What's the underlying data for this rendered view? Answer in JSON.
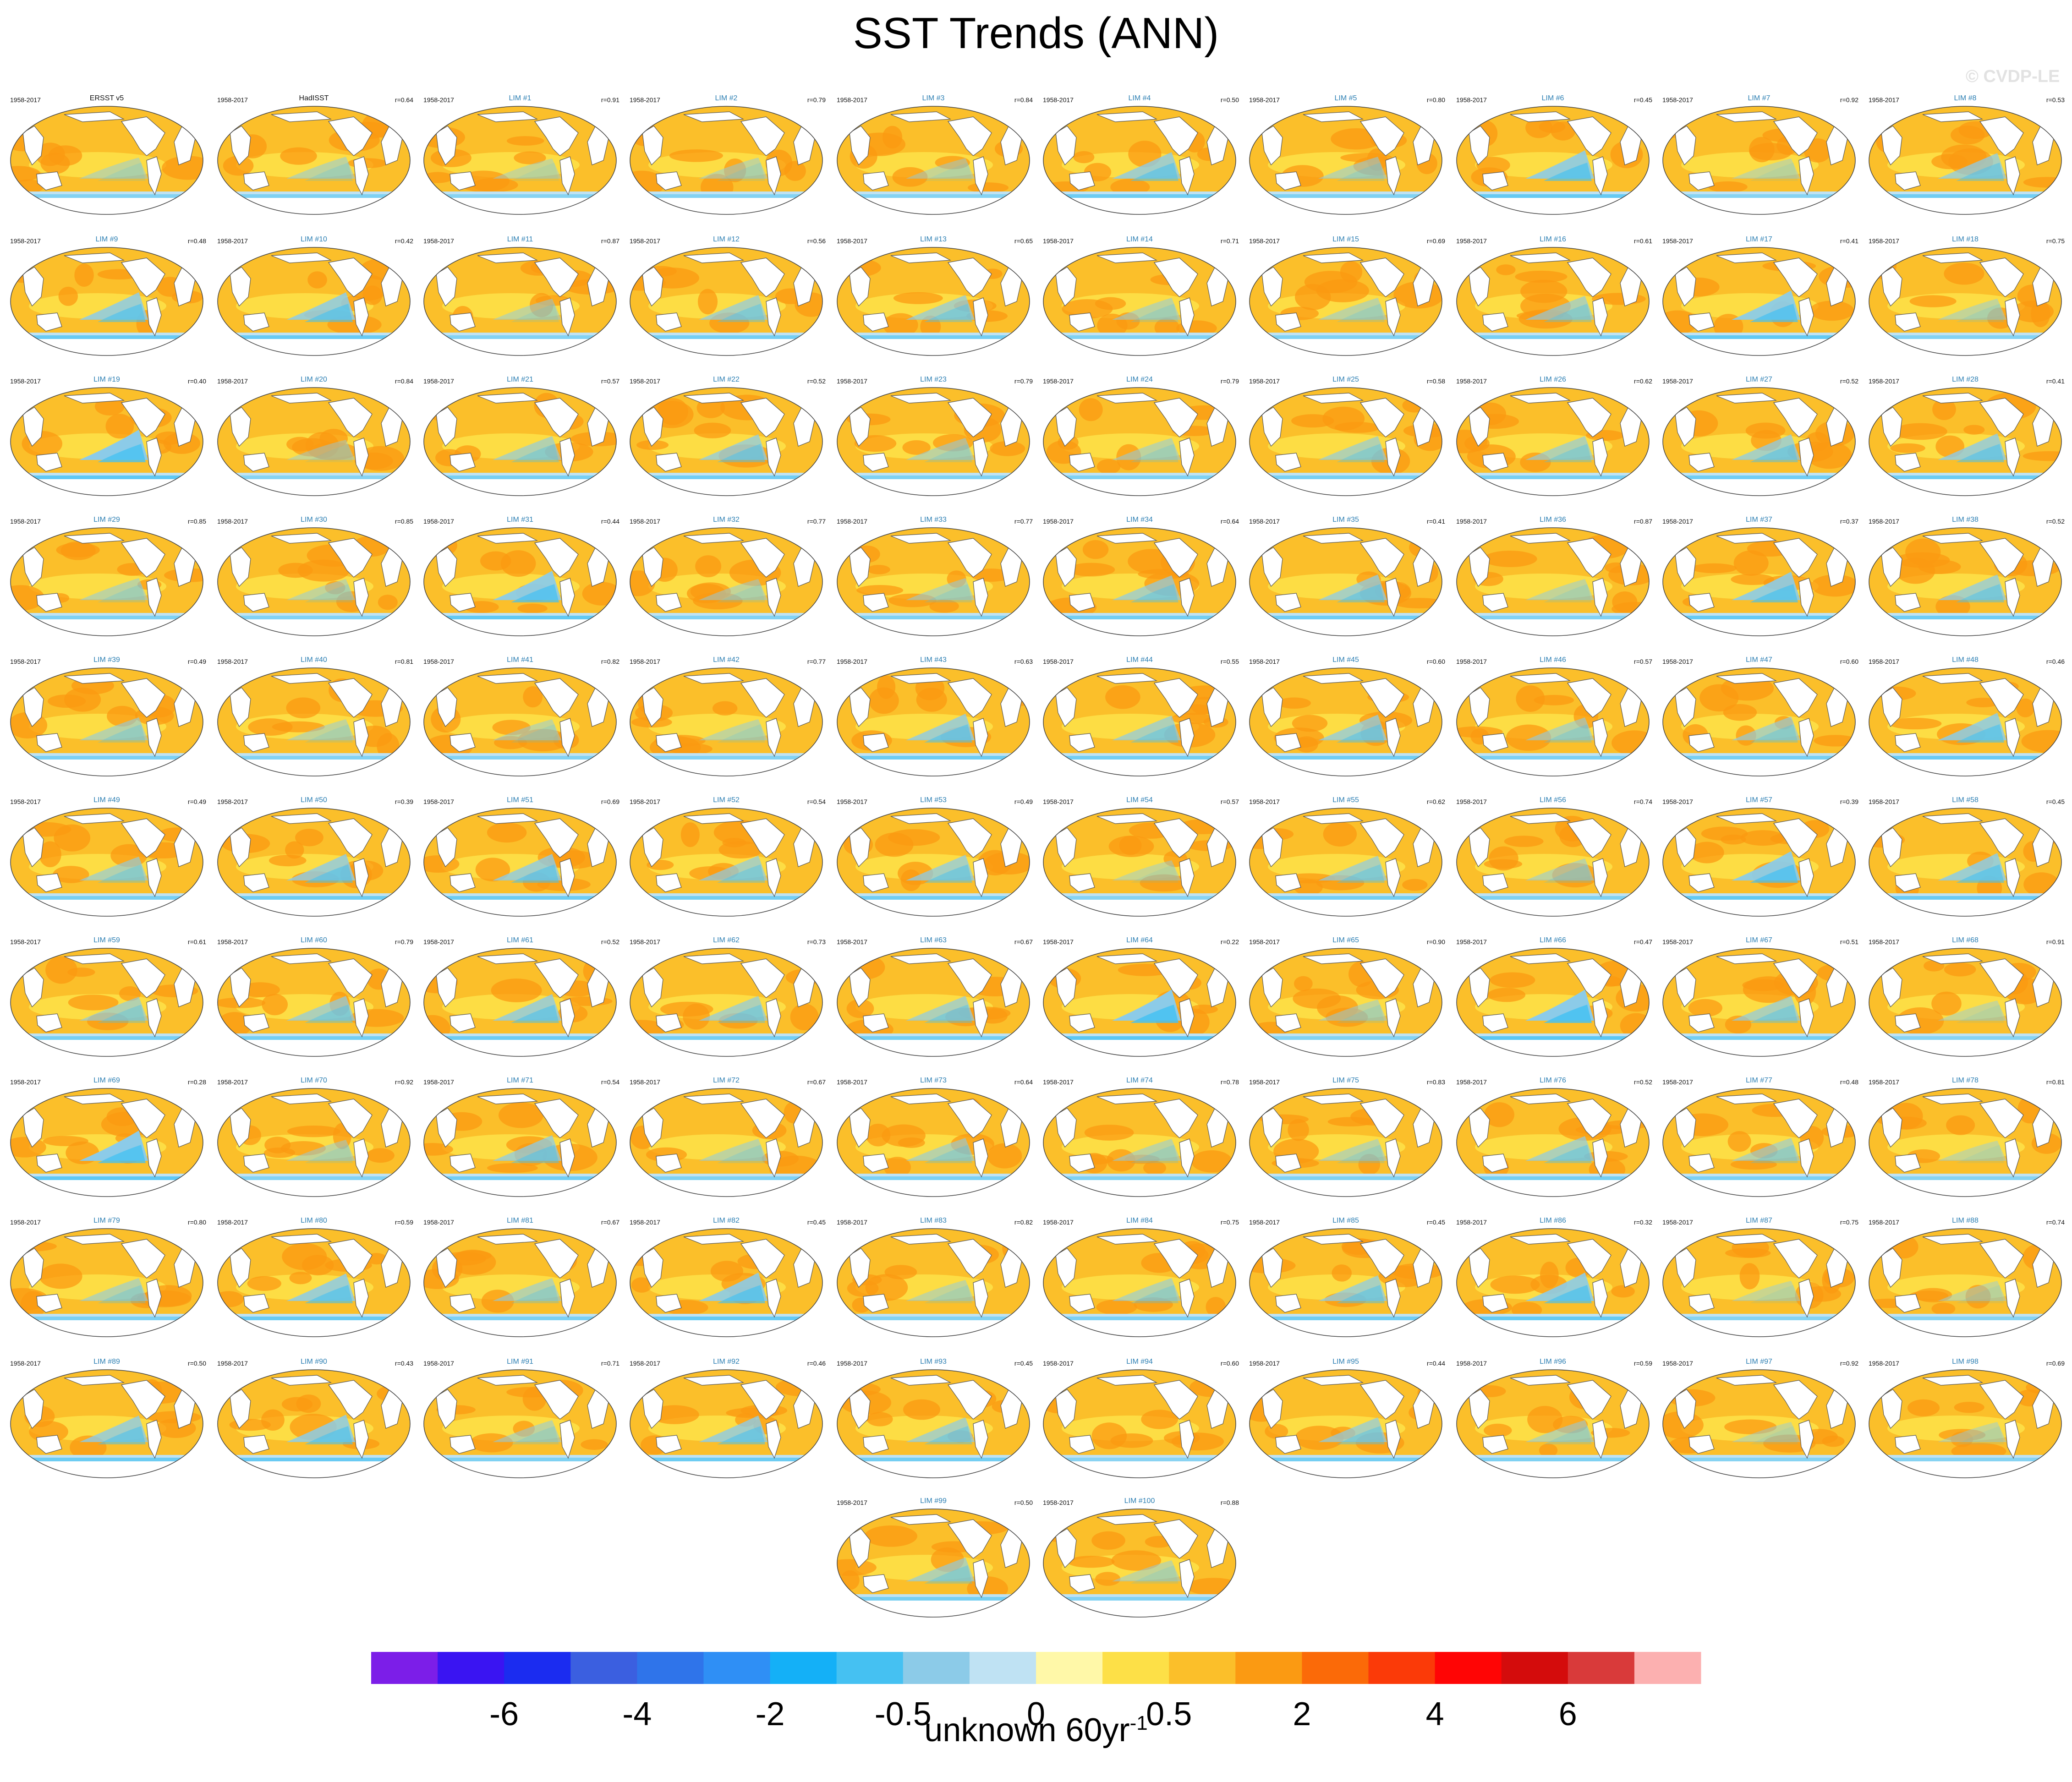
{
  "title": "SST Trends (ANN)",
  "watermark": "© CVDP-LE",
  "period": "1958-2017",
  "panels": [
    {
      "name": "ERSST v5",
      "r": "",
      "obs": true,
      "cool": 0.15
    },
    {
      "name": "HadISST",
      "r": "r=0.64",
      "obs": true,
      "cool": 0.2
    },
    {
      "name": "LIM #1",
      "r": "r=0.91",
      "cool": 0.1
    },
    {
      "name": "LIM #2",
      "r": "r=0.79",
      "cool": 0.15
    },
    {
      "name": "LIM #3",
      "r": "r=0.84",
      "cool": 0.12
    },
    {
      "name": "LIM #4",
      "r": "r=0.50",
      "cool": 0.45
    },
    {
      "name": "LIM #5",
      "r": "r=0.80",
      "cool": 0.2
    },
    {
      "name": "LIM #6",
      "r": "r=0.45",
      "cool": 0.55
    },
    {
      "name": "LIM #7",
      "r": "r=0.92",
      "cool": 0.1
    },
    {
      "name": "LIM #8",
      "r": "r=0.53",
      "cool": 0.4
    },
    {
      "name": "LIM #9",
      "r": "r=0.48",
      "cool": 0.5
    },
    {
      "name": "LIM #10",
      "r": "r=0.42",
      "cool": 0.5
    },
    {
      "name": "LIM #11",
      "r": "r=0.87",
      "cool": 0.15
    },
    {
      "name": "LIM #12",
      "r": "r=0.56",
      "cool": 0.35
    },
    {
      "name": "LIM #13",
      "r": "r=0.65",
      "cool": 0.35
    },
    {
      "name": "LIM #14",
      "r": "r=0.71",
      "cool": 0.2
    },
    {
      "name": "LIM #15",
      "r": "r=0.69",
      "cool": 0.2
    },
    {
      "name": "LIM #16",
      "r": "r=0.61",
      "cool": 0.3
    },
    {
      "name": "LIM #17",
      "r": "r=0.41",
      "cool": 0.6
    },
    {
      "name": "LIM #18",
      "r": "r=0.75",
      "cool": 0.15
    },
    {
      "name": "LIM #19",
      "r": "r=0.40",
      "cool": 0.65
    },
    {
      "name": "LIM #20",
      "r": "r=0.84",
      "cool": 0.1
    },
    {
      "name": "LIM #21",
      "r": "r=0.57",
      "cool": 0.3
    },
    {
      "name": "LIM #22",
      "r": "r=0.52",
      "cool": 0.4
    },
    {
      "name": "LIM #23",
      "r": "r=0.79",
      "cool": 0.2
    },
    {
      "name": "LIM #24",
      "r": "r=0.79",
      "cool": 0.2
    },
    {
      "name": "LIM #25",
      "r": "r=0.58",
      "cool": 0.3
    },
    {
      "name": "LIM #26",
      "r": "r=0.62",
      "cool": 0.3
    },
    {
      "name": "LIM #27",
      "r": "r=0.52",
      "cool": 0.4
    },
    {
      "name": "LIM #28",
      "r": "r=0.41",
      "cool": 0.45
    },
    {
      "name": "LIM #29",
      "r": "r=0.85",
      "cool": 0.2
    },
    {
      "name": "LIM #30",
      "r": "r=0.85",
      "cool": 0.15
    },
    {
      "name": "LIM #31",
      "r": "r=0.44",
      "cool": 0.6
    },
    {
      "name": "LIM #32",
      "r": "r=0.77",
      "cool": 0.15
    },
    {
      "name": "LIM #33",
      "r": "r=0.77",
      "cool": 0.2
    },
    {
      "name": "LIM #34",
      "r": "r=0.64",
      "cool": 0.35
    },
    {
      "name": "LIM #35",
      "r": "r=0.41",
      "cool": 0.4
    },
    {
      "name": "LIM #36",
      "r": "r=0.87",
      "cool": 0.15
    },
    {
      "name": "LIM #37",
      "r": "r=0.37",
      "cool": 0.55
    },
    {
      "name": "LIM #38",
      "r": "r=0.52",
      "cool": 0.4
    },
    {
      "name": "LIM #39",
      "r": "r=0.49",
      "cool": 0.25
    },
    {
      "name": "LIM #40",
      "r": "r=0.81",
      "cool": 0.15
    },
    {
      "name": "LIM #41",
      "r": "r=0.82",
      "cool": 0.15
    },
    {
      "name": "LIM #42",
      "r": "r=0.77",
      "cool": 0.15
    },
    {
      "name": "LIM #43",
      "r": "r=0.63",
      "cool": 0.45
    },
    {
      "name": "LIM #44",
      "r": "r=0.55",
      "cool": 0.35
    },
    {
      "name": "LIM #45",
      "r": "r=0.60",
      "cool": 0.4
    },
    {
      "name": "LIM #46",
      "r": "r=0.57",
      "cool": 0.25
    },
    {
      "name": "LIM #47",
      "r": "r=0.60",
      "cool": 0.3
    },
    {
      "name": "LIM #48",
      "r": "r=0.46",
      "cool": 0.5
    },
    {
      "name": "LIM #49",
      "r": "r=0.49",
      "cool": 0.3
    },
    {
      "name": "LIM #50",
      "r": "r=0.39",
      "cool": 0.45
    },
    {
      "name": "LIM #51",
      "r": "r=0.69",
      "cool": 0.45
    },
    {
      "name": "LIM #52",
      "r": "r=0.54",
      "cool": 0.35
    },
    {
      "name": "LIM #53",
      "r": "r=0.49",
      "cool": 0.4
    },
    {
      "name": "LIM #54",
      "r": "r=0.57",
      "cool": 0.1
    },
    {
      "name": "LIM #55",
      "r": "r=0.62",
      "cool": 0.35
    },
    {
      "name": "LIM #56",
      "r": "r=0.74",
      "cool": 0.2
    },
    {
      "name": "LIM #57",
      "r": "r=0.39",
      "cool": 0.6
    },
    {
      "name": "LIM #58",
      "r": "r=0.45",
      "cool": 0.5
    },
    {
      "name": "LIM #59",
      "r": "r=0.61",
      "cool": 0.3
    },
    {
      "name": "LIM #60",
      "r": "r=0.79",
      "cool": 0.35
    },
    {
      "name": "LIM #61",
      "r": "r=0.52",
      "cool": 0.45
    },
    {
      "name": "LIM #62",
      "r": "r=0.73",
      "cool": 0.35
    },
    {
      "name": "LIM #63",
      "r": "r=0.67",
      "cool": 0.35
    },
    {
      "name": "LIM #64",
      "r": "r=0.22",
      "cool": 0.7
    },
    {
      "name": "LIM #65",
      "r": "r=0.90",
      "cool": 0.15
    },
    {
      "name": "LIM #66",
      "r": "r=0.47",
      "cool": 0.7
    },
    {
      "name": "LIM #67",
      "r": "r=0.51",
      "cool": 0.35
    },
    {
      "name": "LIM #68",
      "r": "r=0.91",
      "cool": 0.1
    },
    {
      "name": "LIM #69",
      "r": "r=0.28",
      "cool": 0.65
    },
    {
      "name": "LIM #70",
      "r": "r=0.92",
      "cool": 0.15
    },
    {
      "name": "LIM #71",
      "r": "r=0.54",
      "cool": 0.4
    },
    {
      "name": "LIM #72",
      "r": "r=0.67",
      "cool": 0.2
    },
    {
      "name": "LIM #73",
      "r": "r=0.64",
      "cool": 0.25
    },
    {
      "name": "LIM #74",
      "r": "r=0.78",
      "cool": 0.2
    },
    {
      "name": "LIM #75",
      "r": "r=0.83",
      "cool": 0.2
    },
    {
      "name": "LIM #76",
      "r": "r=0.52",
      "cool": 0.35
    },
    {
      "name": "LIM #77",
      "r": "r=0.48",
      "cool": 0.25
    },
    {
      "name": "LIM #78",
      "r": "r=0.81",
      "cool": 0.1
    },
    {
      "name": "LIM #79",
      "r": "r=0.80",
      "cool": 0.25
    },
    {
      "name": "LIM #80",
      "r": "r=0.59",
      "cool": 0.5
    },
    {
      "name": "LIM #81",
      "r": "r=0.67",
      "cool": 0.25
    },
    {
      "name": "LIM #82",
      "r": "r=0.45",
      "cool": 0.55
    },
    {
      "name": "LIM #83",
      "r": "r=0.82",
      "cool": 0.15
    },
    {
      "name": "LIM #84",
      "r": "r=0.75",
      "cool": 0.25
    },
    {
      "name": "LIM #85",
      "r": "r=0.45",
      "cool": 0.4
    },
    {
      "name": "LIM #86",
      "r": "r=0.32",
      "cool": 0.55
    },
    {
      "name": "LIM #87",
      "r": "r=0.75",
      "cool": 0.1
    },
    {
      "name": "LIM #88",
      "r": "r=0.74",
      "cool": 0.1
    },
    {
      "name": "LIM #89",
      "r": "r=0.50",
      "cool": 0.45
    },
    {
      "name": "LIM #90",
      "r": "r=0.43",
      "cool": 0.5
    },
    {
      "name": "LIM #91",
      "r": "r=0.71",
      "cool": 0.2
    },
    {
      "name": "LIM #92",
      "r": "r=0.46",
      "cool": 0.45
    },
    {
      "name": "LIM #93",
      "r": "r=0.45",
      "cool": 0.35
    },
    {
      "name": "LIM #94",
      "r": "r=0.60",
      "cool": 0.05
    },
    {
      "name": "LIM #95",
      "r": "r=0.44",
      "cool": 0.35
    },
    {
      "name": "LIM #96",
      "r": "r=0.59",
      "cool": 0.2
    },
    {
      "name": "LIM #97",
      "r": "r=0.92",
      "cool": 0.1
    },
    {
      "name": "LIM #98",
      "r": "r=0.69",
      "cool": 0.1
    },
    {
      "name": "LIM #99",
      "r": "r=0.50",
      "cool": 0.3
    },
    {
      "name": "LIM #100",
      "r": "r=0.88",
      "cool": 0.15
    }
  ],
  "colorbar": {
    "colors": [
      "#7c1ee8",
      "#3a14f2",
      "#1b2cf0",
      "#3b5fe0",
      "#2f74ea",
      "#2f8ff5",
      "#14b0f7",
      "#45c1f2",
      "#8ccbe8",
      "#bfe2f3",
      "#fff8a8",
      "#fde047",
      "#fbbf2a",
      "#fb9a12",
      "#fb6a08",
      "#fb3a08",
      "#ff0505",
      "#d40c0c",
      "#d93a3a",
      "#fcb0b0"
    ],
    "tick_labels": [
      "-6",
      "-4",
      "-2",
      "-0.5",
      "0",
      "0.5",
      "2",
      "4",
      "6"
    ],
    "label": "unknown 60yr",
    "label_sup": "-1"
  },
  "chart_data": {
    "type": "heatmap",
    "title": "SST Trends (ANN)",
    "period": "1958-2017",
    "panels": [
      "ERSST v5",
      "HadISST",
      "LIM #1 ... LIM #100"
    ],
    "colorbar_ticks": [
      "-6",
      "-4",
      "-2",
      "-0.5",
      "0",
      "0.5",
      "2",
      "4",
      "6"
    ],
    "colorbar_units": "unknown 60yr-1",
    "grid_columns": 10
  }
}
